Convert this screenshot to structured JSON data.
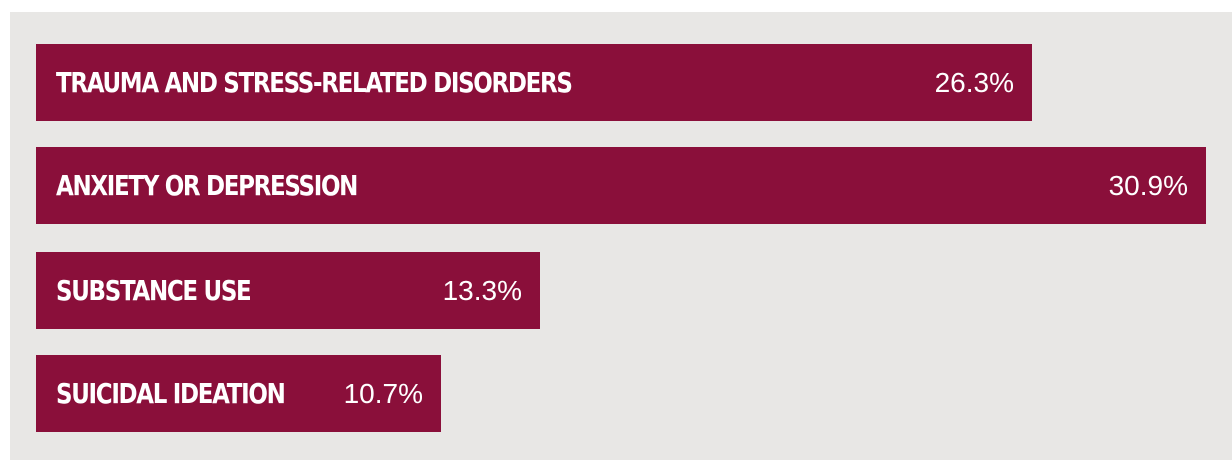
{
  "chart_data": {
    "type": "bar",
    "orientation": "horizontal",
    "categories": [
      "TRAUMA AND STRESS-RELATED DISORDERS",
      "ANXIETY OR DEPRESSION",
      "SUBSTANCE USE",
      "SUICIDAL IDEATION"
    ],
    "values": [
      26.3,
      30.9,
      13.3,
      10.7
    ],
    "value_labels": [
      "26.3%",
      "30.9%",
      "13.3%",
      "10.7%"
    ],
    "unit": "%",
    "bar_color": "#8a0f3a",
    "background_color": "#e8e7e5",
    "grid": false,
    "legend": "none"
  }
}
